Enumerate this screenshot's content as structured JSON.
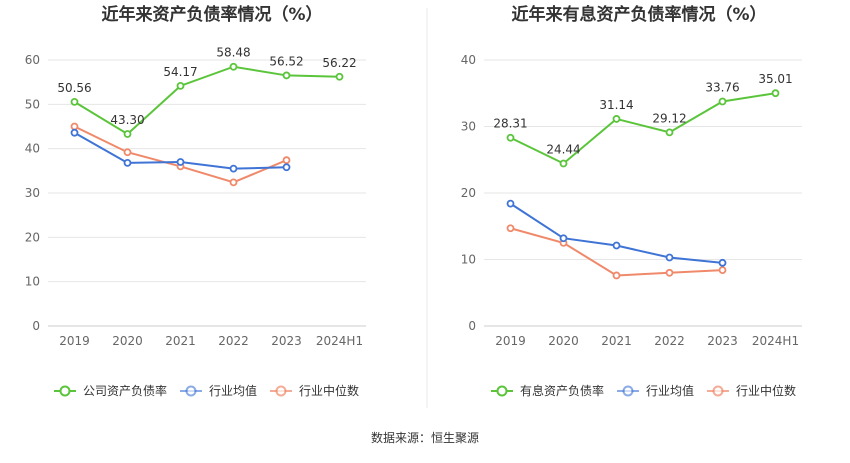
{
  "source_note": "数据来源：恒生聚源",
  "colors": {
    "company": "#5ac53a",
    "industry_avg": "#3f74d6",
    "industry_median": "#f0896a",
    "grid": "#e6e6e6",
    "axis": "#cccccc",
    "divider": "#e8e8e8"
  },
  "chart_data": [
    {
      "type": "line",
      "title": "近年来资产负债率情况（%）",
      "categories": [
        "2019",
        "2020",
        "2021",
        "2022",
        "2023",
        "2024H1"
      ],
      "ylim": [
        0,
        60
      ],
      "yticks": [
        0,
        10,
        20,
        30,
        40,
        50,
        60
      ],
      "grid": true,
      "legend_position": "bottom",
      "series": [
        {
          "name": "公司资产负债率",
          "color_key": "company",
          "values": [
            50.56,
            43.3,
            54.17,
            58.48,
            56.52,
            56.22
          ],
          "labels": [
            "50.56",
            "43.30",
            "54.17",
            "58.48",
            "56.52",
            "56.22"
          ]
        },
        {
          "name": "行业均值",
          "color_key": "industry_avg",
          "values": [
            43.6,
            36.8,
            37.0,
            35.5,
            35.8,
            null
          ]
        },
        {
          "name": "行业中位数",
          "color_key": "industry_median",
          "values": [
            45.0,
            39.2,
            36.0,
            32.4,
            37.4,
            null
          ]
        }
      ]
    },
    {
      "type": "line",
      "title": "近年来有息资产负债率情况（%）",
      "categories": [
        "2019",
        "2020",
        "2021",
        "2022",
        "2023",
        "2024H1"
      ],
      "ylim": [
        0,
        40
      ],
      "yticks": [
        0,
        10,
        20,
        30,
        40
      ],
      "grid": true,
      "legend_position": "bottom",
      "series": [
        {
          "name": "有息资产负债率",
          "color_key": "company",
          "values": [
            28.31,
            24.44,
            31.14,
            29.12,
            33.76,
            35.01
          ],
          "labels": [
            "28.31",
            "24.44",
            "31.14",
            "29.12",
            "33.76",
            "35.01"
          ]
        },
        {
          "name": "行业均值",
          "color_key": "industry_avg",
          "values": [
            18.4,
            13.2,
            12.1,
            10.3,
            9.5,
            null
          ]
        },
        {
          "name": "行业中位数",
          "color_key": "industry_median",
          "values": [
            14.7,
            12.5,
            7.6,
            8.0,
            8.4,
            null
          ]
        }
      ]
    }
  ]
}
